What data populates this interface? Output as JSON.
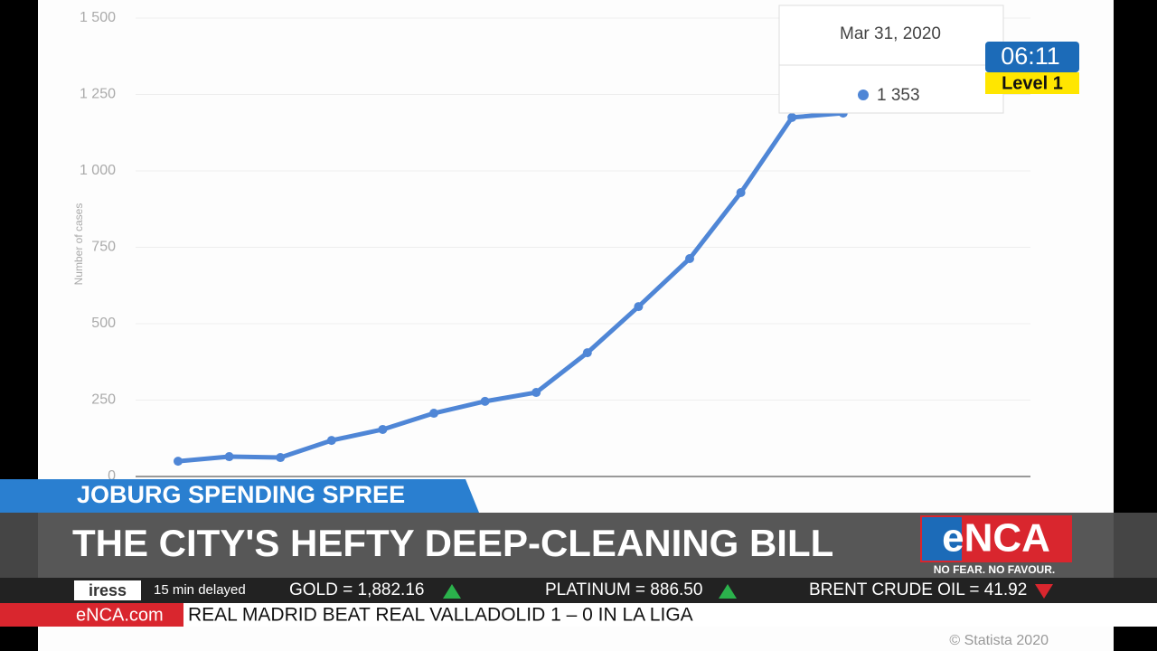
{
  "chart_data": {
    "type": "line",
    "y_label": "Number of cases",
    "categories": [
      null,
      null,
      null,
      null,
      null,
      null,
      null,
      null,
      null,
      null,
      null,
      null,
      null,
      null,
      null
    ],
    "series": [
      {
        "color": "#4f86d6",
        "values": [
          50,
          65,
          62,
          118,
          154,
          207,
          246,
          275,
          405,
          556,
          713,
          929,
          1175,
          1189,
          1353
        ]
      }
    ],
    "ylim": [
      0,
      1500
    ],
    "yticks": [
      0,
      250,
      500,
      750,
      {
        "value": 1000,
        "label": "1 000"
      },
      {
        "value": 1250,
        "label": "1 250"
      },
      {
        "value": 1500,
        "label": "1 500"
      }
    ],
    "grid": true,
    "tooltip": {
      "title": "Mar 31, 2020",
      "value": "1 353"
    },
    "credit": "© Statista 2020"
  },
  "broadcast": {
    "clock": "06:11",
    "level": "Level 1",
    "kicker": "JOBURG SPENDING SPREE",
    "headline": "THE CITY'S HEFTY DEEP-CLEANING BILL",
    "logo": "eNCA",
    "slogan": "NO FEAR. NO FAVOUR.",
    "ticker_source": "iress",
    "ticker_note": "15 min delayed",
    "markets": [
      "GOLD = 1,882.16",
      "PLATINUM = 886.50",
      "BRENT CRUDE OIL = 41.92"
    ],
    "site": "eNCA.com",
    "news": "REAL MADRID BEAT REAL VALLADOLID 1 – 0 IN LA LIGA"
  }
}
